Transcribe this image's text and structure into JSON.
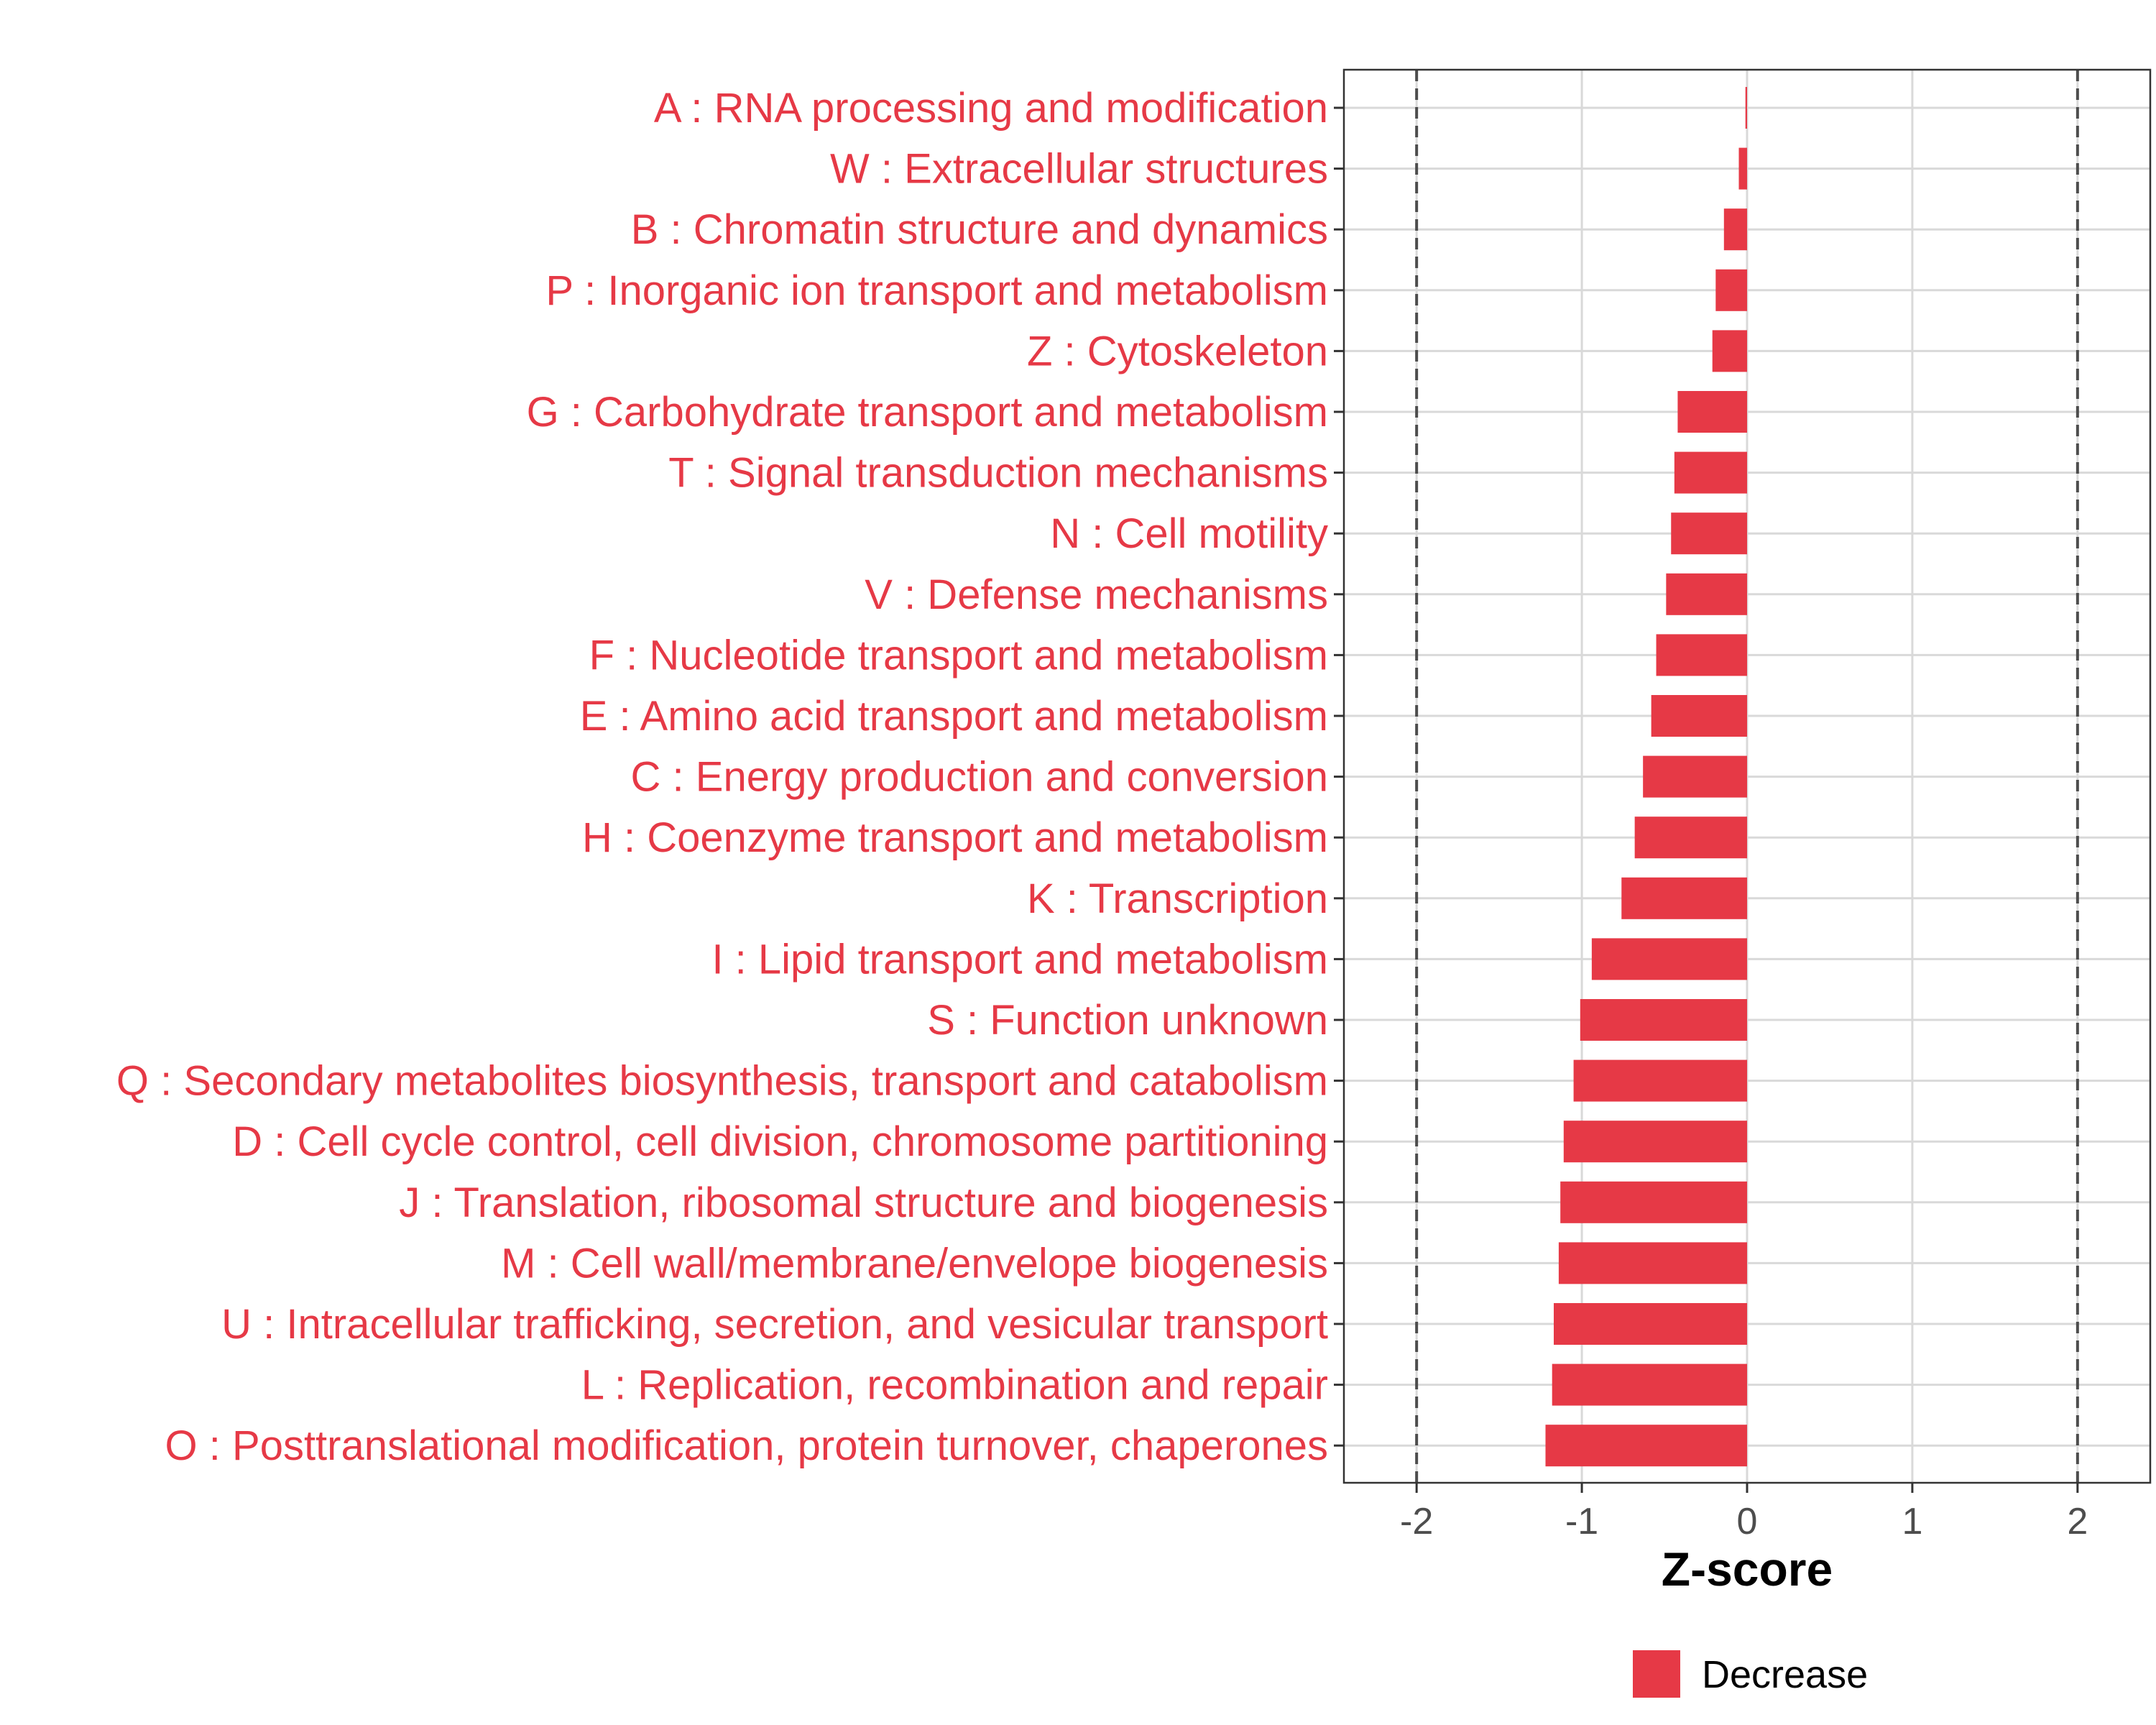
{
  "chart_data": {
    "type": "bar",
    "orientation": "horizontal",
    "categories": [
      "A : RNA processing and modification",
      "W : Extracellular structures",
      "B : Chromatin structure and dynamics",
      "P : Inorganic ion transport and metabolism",
      "Z : Cytoskeleton",
      "G : Carbohydrate transport and metabolism",
      "T : Signal transduction mechanisms",
      "N : Cell motility",
      "V : Defense mechanisms",
      "F : Nucleotide transport and metabolism",
      "E : Amino acid transport and metabolism",
      "C : Energy production and conversion",
      "H : Coenzyme transport and metabolism",
      "K : Transcription",
      "I : Lipid transport and metabolism",
      "S : Function unknown",
      "Q : Secondary metabolites biosynthesis, transport and catabolism",
      "D : Cell cycle control, cell division, chromosome partitioning",
      "J : Translation, ribosomal structure and biogenesis",
      "M : Cell wall/membrane/envelope biogenesis",
      "U : Intracellular trafficking, secretion, and vesicular transport",
      "L : Replication, recombination and repair",
      "O : Posttranslational modification, protein turnover, chaperones"
    ],
    "values": [
      -0.01,
      -0.05,
      -0.14,
      -0.19,
      -0.21,
      -0.42,
      -0.44,
      -0.46,
      -0.49,
      -0.55,
      -0.58,
      -0.63,
      -0.68,
      -0.76,
      -0.94,
      -1.01,
      -1.05,
      -1.11,
      -1.13,
      -1.14,
      -1.17,
      -1.18,
      -1.22
    ],
    "xlabel": "Z-score",
    "ylabel": "",
    "xlim": [
      -2.44,
      2.44
    ],
    "xticks": [
      "-2",
      "-1",
      "0",
      "1",
      "2"
    ],
    "xtick_values": [
      -2,
      -1,
      0,
      1,
      2
    ],
    "reference_lines": [
      -2,
      2
    ],
    "grid": true,
    "legend": {
      "entries": [
        "Decrease"
      ],
      "placement": "bottom"
    },
    "colors": {
      "bar": "#e63946",
      "label": "#e63946",
      "grid": "#d9d9d9",
      "reference_line": "#4d4d4d"
    }
  }
}
